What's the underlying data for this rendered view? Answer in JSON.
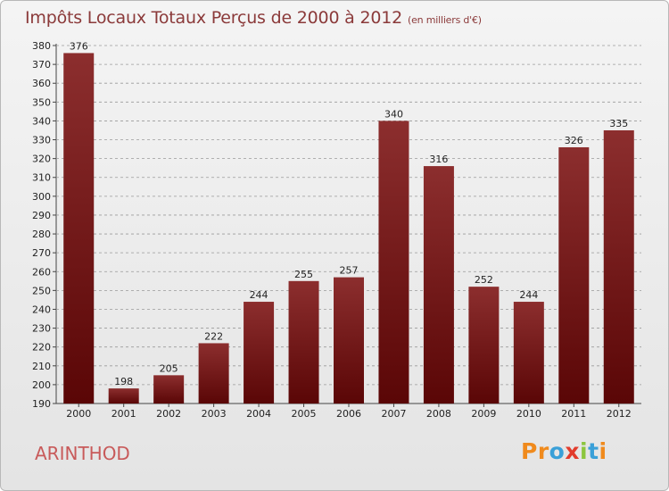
{
  "chart_data": {
    "type": "bar",
    "title": "Impôts Locaux Totaux Perçus de 2000 à 2012",
    "subtitle": "(en milliers d'€)",
    "categories": [
      "2000",
      "2001",
      "2002",
      "2003",
      "2004",
      "2005",
      "2006",
      "2007",
      "2008",
      "2009",
      "2010",
      "2011",
      "2012"
    ],
    "values": [
      376,
      198,
      205,
      222,
      244,
      255,
      257,
      340,
      316,
      252,
      244,
      326,
      335
    ],
    "ylim": [
      190,
      380
    ],
    "yticks": [
      190,
      200,
      210,
      220,
      230,
      240,
      250,
      260,
      270,
      280,
      290,
      300,
      310,
      320,
      330,
      340,
      350,
      360,
      370,
      380
    ],
    "grid": "dashed horizontal",
    "bar_color": "#6b1414",
    "bar_color_light": "#8c2e2e"
  },
  "commune": "ARINTHOD",
  "brand": {
    "letters": [
      "P",
      "r",
      "o",
      "x",
      "i",
      "t",
      "i"
    ],
    "colors": [
      "#f08a1c",
      "#f08a1c",
      "#3aa0d8",
      "#e23c2c",
      "#8cc63e",
      "#3aa0d8",
      "#f08a1c"
    ]
  }
}
